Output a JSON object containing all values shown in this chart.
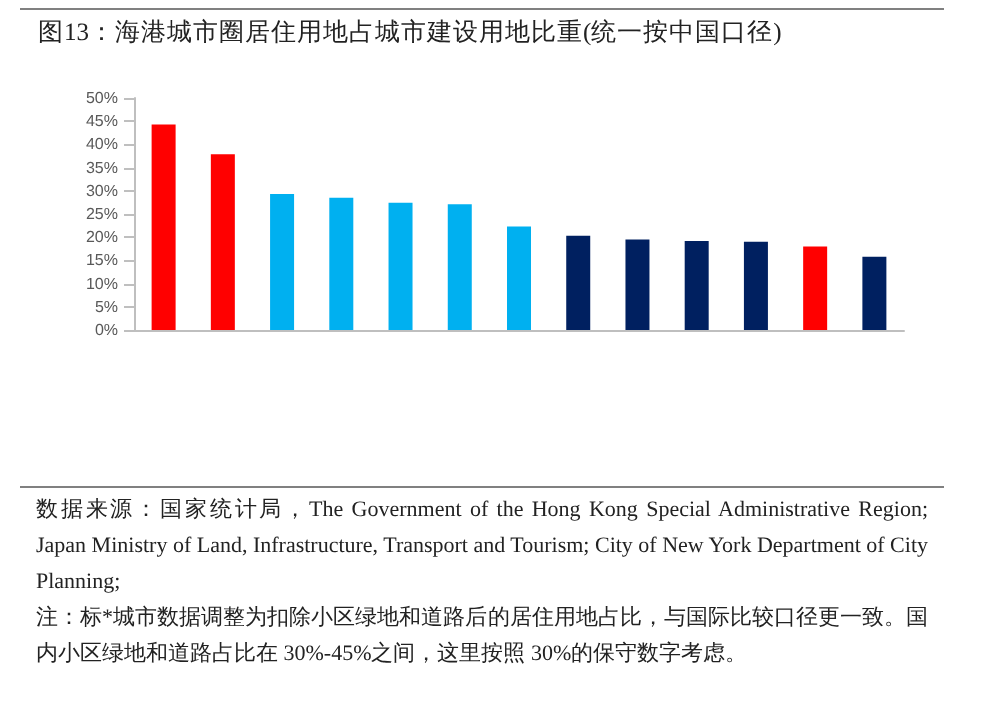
{
  "chart_data": {
    "type": "bar",
    "title": "图13：海港城市圈居住用地占城市建设用地比重(统一按中国口径)",
    "categories": [
      null,
      null,
      null,
      null,
      null,
      null,
      null,
      null,
      null,
      null,
      null,
      null,
      null
    ],
    "values": [
      44.3,
      37.9,
      29.3,
      28.5,
      27.4,
      27.1,
      22.3,
      20.3,
      19.5,
      19.2,
      19,
      18,
      15.8
    ],
    "colors": [
      "#ff0000",
      "#ff0000",
      "#00b0f0",
      "#00b0f0",
      "#00b0f0",
      "#00b0f0",
      "#00b0f0",
      "#002060",
      "#002060",
      "#002060",
      "#002060",
      "#ff0000",
      "#002060"
    ],
    "ylim": [
      0,
      50
    ],
    "yticks": [
      {
        "value": 0,
        "label": "0%"
      },
      {
        "value": 5,
        "label": "5%"
      },
      {
        "value": 10,
        "label": "10%"
      },
      {
        "value": 15,
        "label": "15%"
      },
      {
        "value": 20,
        "label": "20%"
      },
      {
        "value": 25,
        "label": "25%"
      },
      {
        "value": 30,
        "label": "30%"
      },
      {
        "value": 35,
        "label": "35%"
      },
      {
        "value": 40,
        "label": "40%"
      },
      {
        "value": 45,
        "label": "45%"
      },
      {
        "value": 50,
        "label": "50%"
      }
    ],
    "grid": false,
    "annotations": [
      "数据来源：国家统计局，The Government of the Hong Kong Special Administrative Region; Japan Ministry of Land, Infrastructure, Transport and Tourism;  City of New York Department of City Planning;",
      "注：标*城市数据调整为扣除小区绿地和道路后的居住用地占比，与国际比较口径更一致。国内小区绿地和道路占比在 30%-45%之间，这里按照 30%的保守数字考虑。"
    ]
  }
}
